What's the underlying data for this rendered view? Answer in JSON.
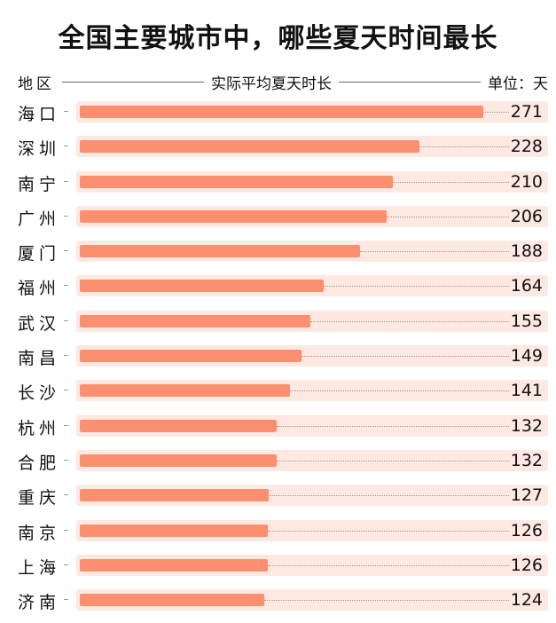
{
  "header": {
    "title": "全国主要城市中，哪些夏天时间最长",
    "region_label": "地区",
    "metric_label": "实际平均夏天时长",
    "unit_label": "单位：天"
  },
  "colors": {
    "bar": "#fb8f70",
    "track": "#fde8e2",
    "text": "#111111"
  },
  "chart_data": {
    "type": "bar",
    "orientation": "horizontal",
    "title": "全国主要城市中，哪些夏天时间最长",
    "xlabel": "实际平均夏天时长",
    "ylabel": "地区",
    "unit": "天",
    "xlim": [
      0,
      271
    ],
    "grid": false,
    "legend": null,
    "categories": [
      "海口",
      "深圳",
      "南宁",
      "广州",
      "厦门",
      "福州",
      "武汉",
      "南昌",
      "长沙",
      "杭州",
      "合肥",
      "重庆",
      "南京",
      "上海",
      "济南"
    ],
    "values": [
      271,
      228,
      210,
      206,
      188,
      164,
      155,
      149,
      141,
      132,
      132,
      127,
      126,
      126,
      124
    ]
  },
  "rows": [
    {
      "city": "海口",
      "value": "271"
    },
    {
      "city": "深圳",
      "value": "228"
    },
    {
      "city": "南宁",
      "value": "210"
    },
    {
      "city": "广州",
      "value": "206"
    },
    {
      "city": "厦门",
      "value": "188"
    },
    {
      "city": "福州",
      "value": "164"
    },
    {
      "city": "武汉",
      "value": "155"
    },
    {
      "city": "南昌",
      "value": "149"
    },
    {
      "city": "长沙",
      "value": "141"
    },
    {
      "city": "杭州",
      "value": "132"
    },
    {
      "city": "合肥",
      "value": "132"
    },
    {
      "city": "重庆",
      "value": "127"
    },
    {
      "city": "南京",
      "value": "126"
    },
    {
      "city": "上海",
      "value": "126"
    },
    {
      "city": "济南",
      "value": "124"
    }
  ]
}
